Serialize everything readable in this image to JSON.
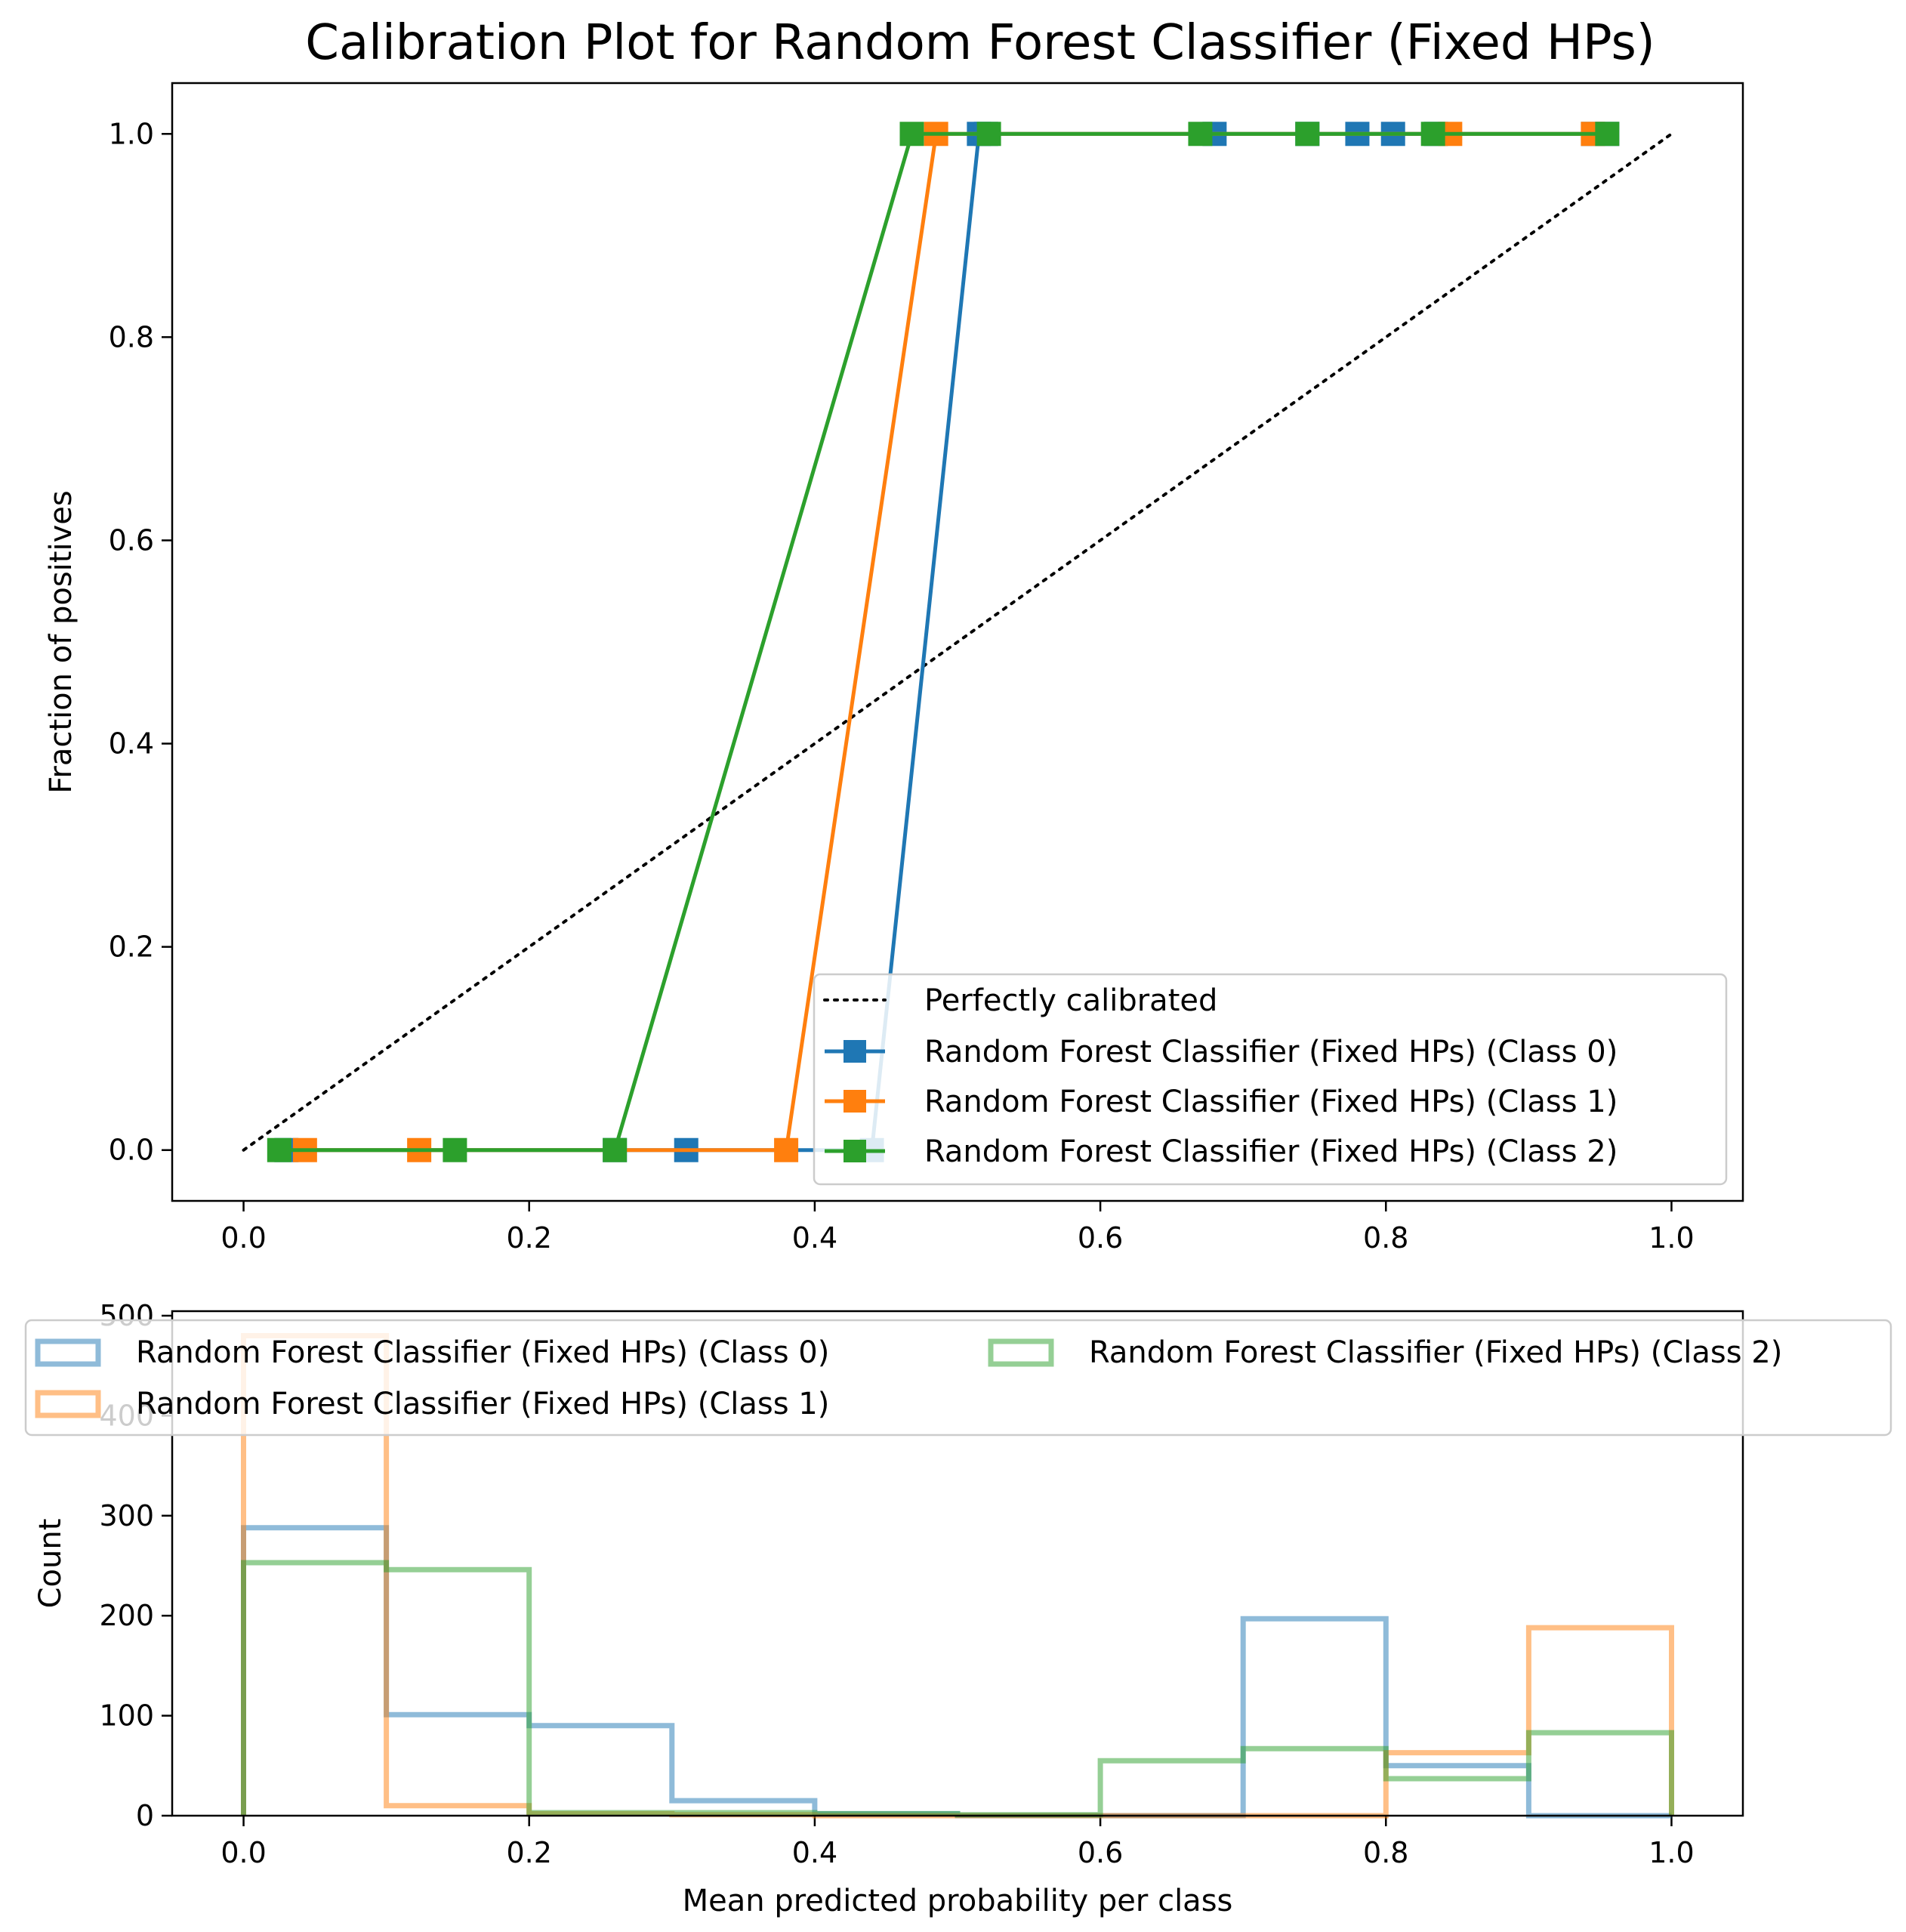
{
  "colors": {
    "class0": "#1f77b4",
    "class1": "#ff7f0e",
    "class2": "#2ca02c",
    "diagonal": "#000000",
    "frame": "#000000",
    "legend_border": "#cccccc"
  },
  "chart_data": [
    {
      "type": "line",
      "title": "Calibration Plot for Random Forest Classifier (Fixed HPs)",
      "xlabel": "",
      "ylabel": "Fraction of positives",
      "xlim": [
        -0.05,
        1.05
      ],
      "ylim": [
        -0.05,
        1.05
      ],
      "xticks": [
        "0.0",
        "0.2",
        "0.4",
        "0.6",
        "0.8",
        "1.0"
      ],
      "yticks": [
        "0.0",
        "0.2",
        "0.4",
        "0.6",
        "0.8",
        "1.0"
      ],
      "legend_position": "lower-right",
      "reference_line": {
        "name": "Perfectly calibrated",
        "x": [
          0,
          1
        ],
        "y": [
          0,
          1
        ],
        "style": "dotted"
      },
      "series": [
        {
          "name": "Random Forest Classifier (Fixed HPs) (Class 0)",
          "color_key": "class0",
          "x": [
            0.03,
            0.26,
            0.31,
            0.44,
            0.515,
            0.52,
            0.68,
            0.745,
            0.78,
            0.805,
            0.835,
            0.945,
            0.955
          ],
          "y": [
            0,
            0,
            0,
            0,
            1,
            1,
            1,
            1,
            1,
            1,
            1,
            1,
            1
          ]
        },
        {
          "name": "Random Forest Classifier (Fixed HPs) (Class 1)",
          "color_key": "class1",
          "x": [
            0.043,
            0.123,
            0.38,
            0.485,
            0.845,
            0.945
          ],
          "y": [
            0,
            0,
            0,
            1,
            1,
            1
          ]
        },
        {
          "name": "Random Forest Classifier (Fixed HPs) (Class 2)",
          "color_key": "class2",
          "x": [
            0.025,
            0.148,
            0.26,
            0.468,
            0.522,
            0.67,
            0.745,
            0.833,
            0.955
          ],
          "y": [
            0,
            0,
            0,
            1,
            1,
            1,
            1,
            1,
            1
          ]
        }
      ]
    },
    {
      "type": "histogram",
      "title": "",
      "xlabel": "Mean predicted probability per class",
      "ylabel": "Count",
      "xlim": [
        -0.05,
        1.05
      ],
      "ylim": [
        0,
        500
      ],
      "xticks": [
        "0.0",
        "0.2",
        "0.4",
        "0.6",
        "0.8",
        "1.0"
      ],
      "yticks": [
        "0",
        "100",
        "200",
        "300",
        "400",
        "500"
      ],
      "legend_position": "top",
      "bin_edges": [
        0,
        0.1,
        0.2,
        0.3,
        0.4,
        0.5,
        0.6,
        0.7,
        0.8,
        0.9,
        1.0
      ],
      "series": [
        {
          "name": "Random Forest Classifier (Fixed HPs) (Class 0)",
          "color_key": "class0",
          "counts": [
            288,
            101,
            90,
            15,
            2,
            0,
            0,
            197,
            50,
            0
          ]
        },
        {
          "name": "Random Forest Classifier (Fixed HPs) (Class 1)",
          "color_key": "class1",
          "counts": [
            480,
            10,
            2,
            1,
            0,
            0,
            0,
            0,
            63,
            188
          ]
        },
        {
          "name": "Random Forest Classifier (Fixed HPs) (Class 2)",
          "color_key": "class2",
          "counts": [
            253,
            246,
            3,
            3,
            2,
            1,
            55,
            67,
            37,
            83
          ]
        }
      ]
    }
  ]
}
